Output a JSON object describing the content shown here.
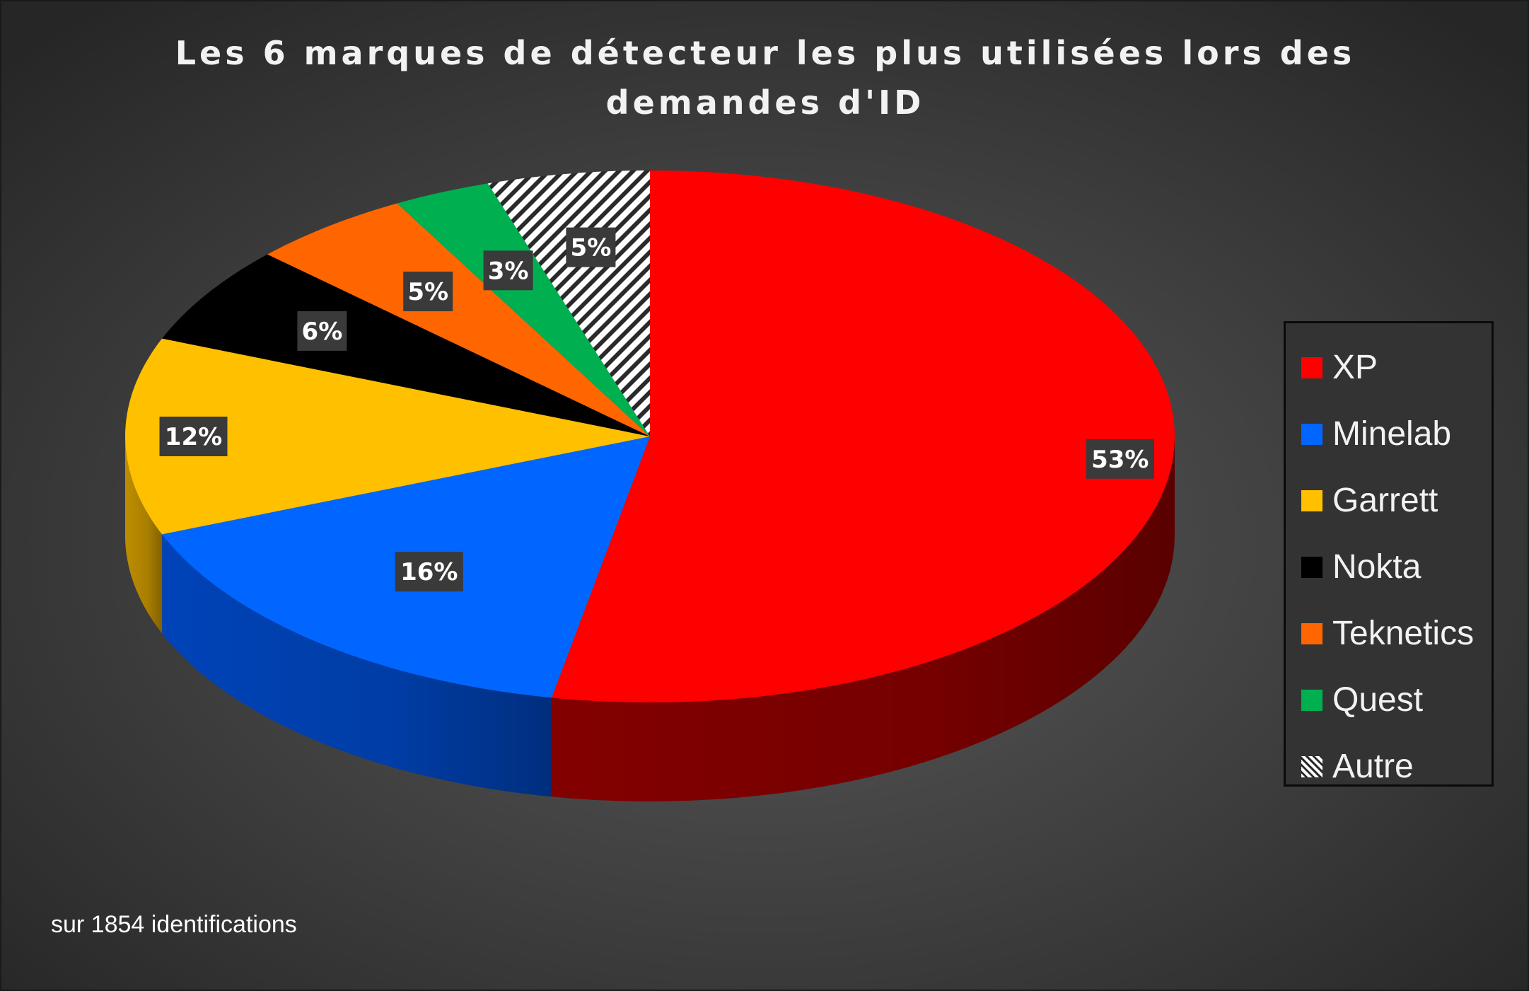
{
  "chart_data": {
    "type": "pie",
    "title": "Les 6 marques de détecteur les plus utilisées lors des demandes d'ID",
    "categories": [
      "XP",
      "Minelab",
      "Garrett",
      "Nokta",
      "Teknetics",
      "Quest",
      "Autre"
    ],
    "values": [
      53,
      16,
      12,
      6,
      5,
      3,
      5
    ],
    "data_labels": [
      "53%",
      "16%",
      "12%",
      "6%",
      "5%",
      "3%",
      "5%"
    ],
    "colors": [
      "#ff0000",
      "#0066ff",
      "#ffc000",
      "#000000",
      "#ff6600",
      "#00b050",
      "hatched-white"
    ],
    "side_colors": [
      "#8a0000",
      "#0047c2",
      "#c79500",
      "#000000",
      "#c04c00",
      "#007a3a",
      "#bdbdbd"
    ],
    "legend_position": "right",
    "style": "3d-perspective"
  },
  "legend_title_fragments": [
    "Les 6 marques de détecteur les plus utilisées lors des",
    "demandes d'ID"
  ],
  "footnote": "sur 1854 identifications"
}
